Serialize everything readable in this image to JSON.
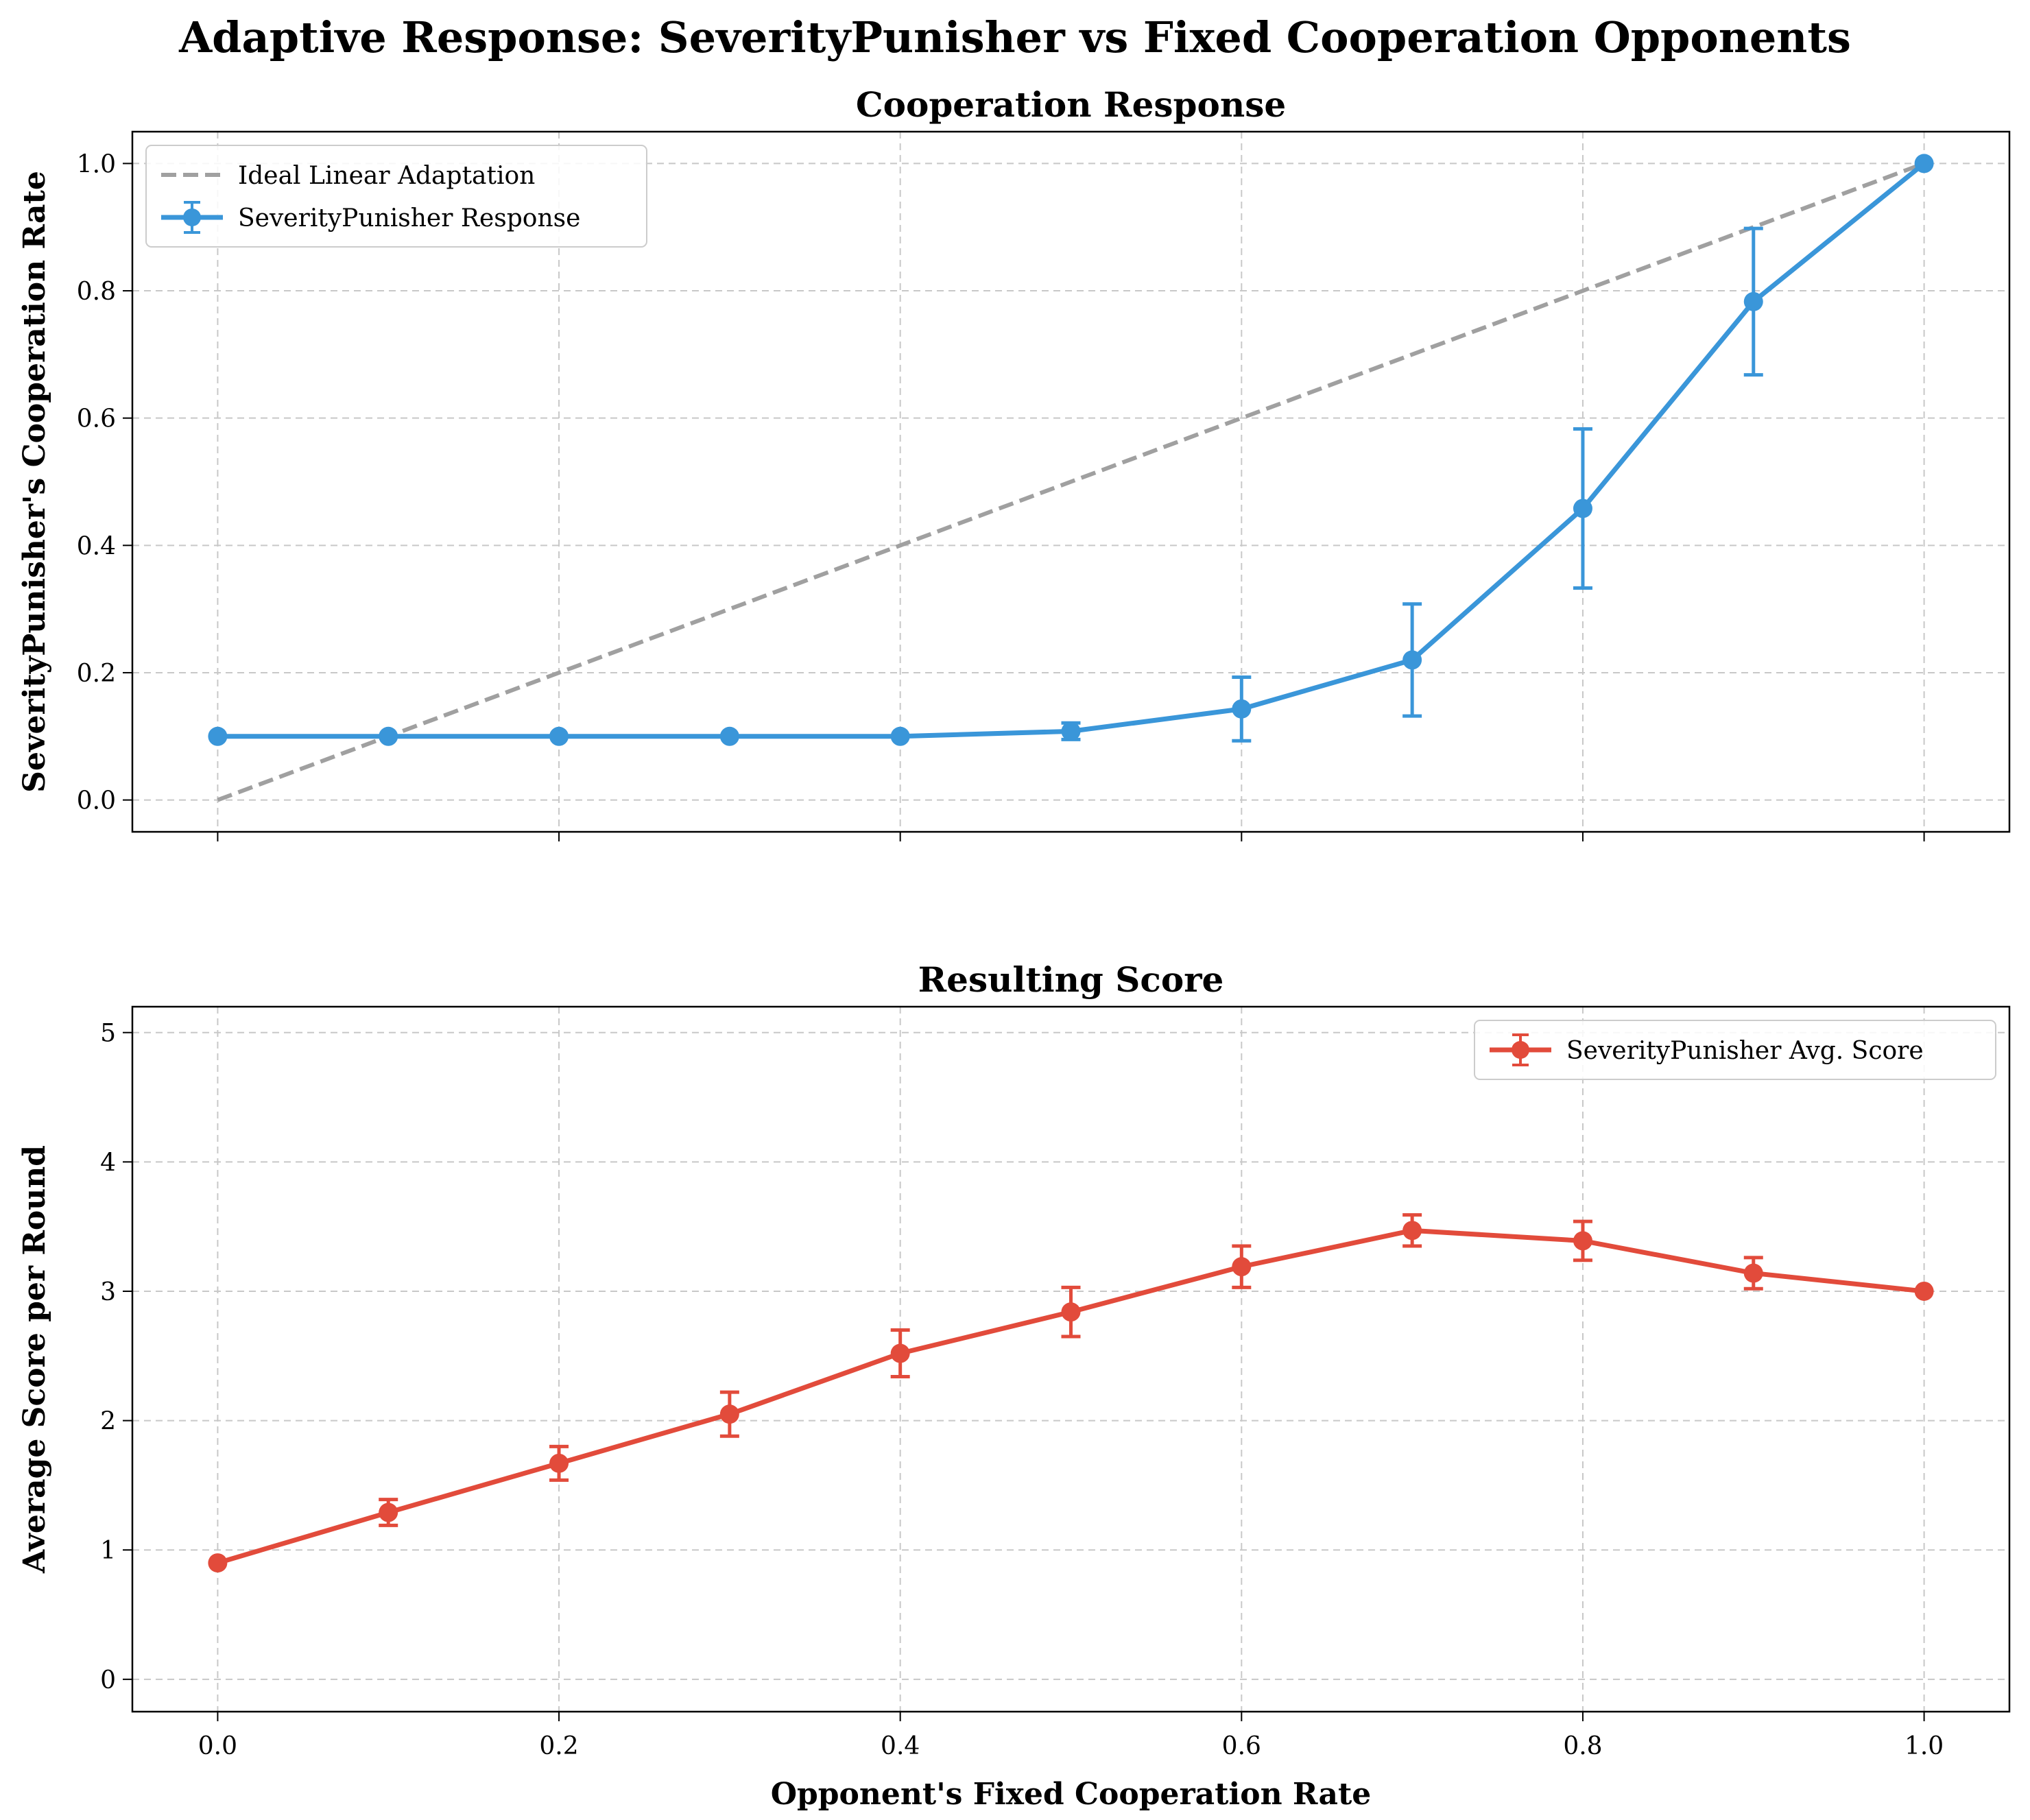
{
  "suptitle": "Adaptive Response: SeverityPunisher vs Fixed Cooperation Opponents",
  "colors": {
    "blue": "#3a96d9",
    "red": "#e24b3b",
    "ideal": "#a0a0a0",
    "grid": "#c8c8c8"
  },
  "chart_data": [
    {
      "type": "line",
      "title": "Cooperation Response",
      "xlabel": "",
      "ylabel": "SeverityPunisher's Cooperation Rate",
      "xlim": [
        -0.05,
        1.05
      ],
      "ylim": [
        -0.05,
        1.05
      ],
      "xticks": [
        "0.0",
        "0.2",
        "0.4",
        "0.6",
        "0.8",
        "1.0"
      ],
      "yticks": [
        "0.0",
        "0.2",
        "0.4",
        "0.6",
        "0.8",
        "1.0"
      ],
      "grid": true,
      "legend_position": "top-left",
      "x": [
        0.0,
        0.1,
        0.2,
        0.3,
        0.4,
        0.5,
        0.6,
        0.7,
        0.8,
        0.9,
        1.0
      ],
      "series": [
        {
          "name": "Ideal Linear Adaptation",
          "style": "dashed",
          "x": [
            0.0,
            1.0
          ],
          "values": [
            0.0,
            1.0
          ]
        },
        {
          "name": "SeverityPunisher Response",
          "style": "errorbar",
          "values": [
            0.1,
            0.1,
            0.1,
            0.1,
            0.1,
            0.108,
            0.143,
            0.22,
            0.458,
            0.783,
            1.0
          ],
          "errors": [
            0,
            0,
            0,
            0,
            0,
            0.013,
            0.05,
            0.088,
            0.125,
            0.115,
            0
          ]
        }
      ]
    },
    {
      "type": "line",
      "title": "Resulting Score",
      "xlabel": "Opponent's Fixed Cooperation Rate",
      "ylabel": "Average Score per Round",
      "xlim": [
        -0.05,
        1.05
      ],
      "ylim": [
        -0.25,
        5.2
      ],
      "xticks": [
        "0.0",
        "0.2",
        "0.4",
        "0.6",
        "0.8",
        "1.0"
      ],
      "yticks": [
        "0",
        "1",
        "2",
        "3",
        "4",
        "5"
      ],
      "grid": true,
      "legend_position": "top-right",
      "x": [
        0.0,
        0.1,
        0.2,
        0.3,
        0.4,
        0.5,
        0.6,
        0.7,
        0.8,
        0.9,
        1.0
      ],
      "series": [
        {
          "name": "SeverityPunisher Avg. Score",
          "style": "errorbar",
          "values": [
            0.9,
            1.29,
            1.67,
            2.05,
            2.52,
            2.84,
            3.19,
            3.47,
            3.39,
            3.14,
            3.0
          ],
          "errors": [
            0,
            0.1,
            0.13,
            0.17,
            0.18,
            0.19,
            0.16,
            0.12,
            0.15,
            0.12,
            0
          ]
        }
      ]
    }
  ]
}
